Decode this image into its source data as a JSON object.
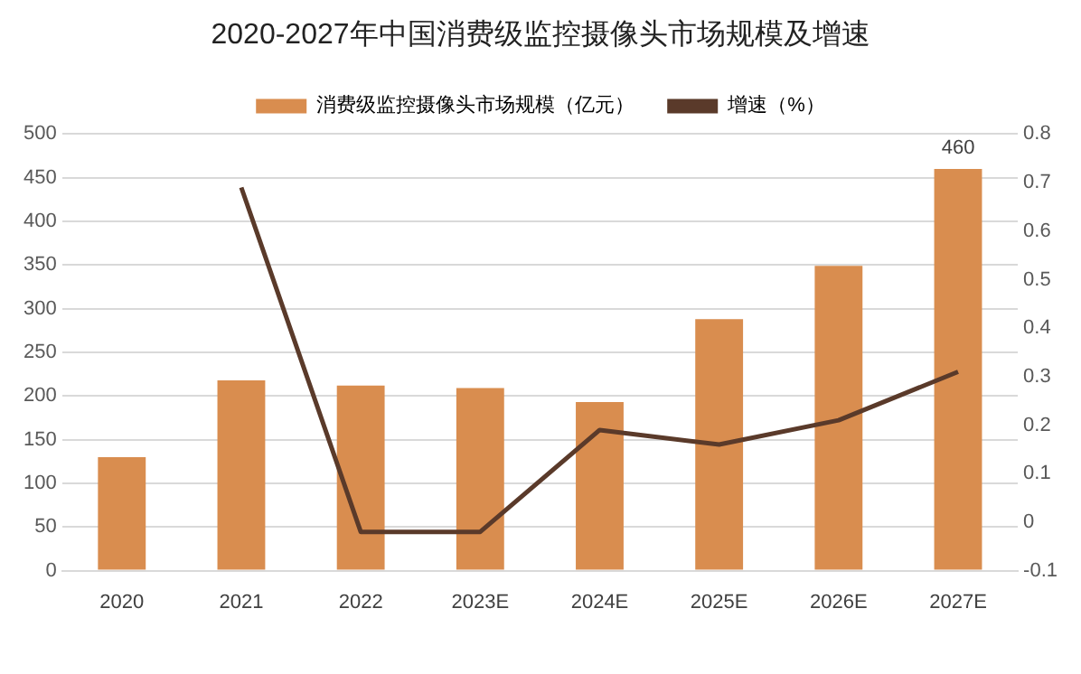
{
  "chart_data": {
    "type": "bar",
    "title": "2020-2027年中国消费级监控摄像头市场规模及增速",
    "categories": [
      "2020",
      "2021",
      "2022",
      "2023E",
      "2024E",
      "2025E",
      "2026E",
      "2027E"
    ],
    "series": [
      {
        "name": "消费级监控摄像头市场规模（亿元）",
        "type": "bar",
        "color": "#d98d4f",
        "values": [
          130,
          218,
          212,
          209,
          193,
          288,
          349,
          460
        ],
        "value_labels": [
          null,
          null,
          null,
          null,
          null,
          null,
          null,
          "460"
        ]
      },
      {
        "name": "增速（%）",
        "type": "line",
        "axis": "y2",
        "color": "#5a3a2a",
        "values": [
          null,
          0.69,
          -0.02,
          -0.02,
          0.19,
          0.16,
          0.21,
          0.31
        ]
      }
    ],
    "ylim": [
      0,
      500
    ],
    "yticks": [
      0,
      50,
      100,
      150,
      200,
      250,
      300,
      350,
      400,
      450,
      500
    ],
    "y2lim": [
      -0.1,
      0.8
    ],
    "y2ticks": [
      -0.1,
      0,
      0.1,
      0.2,
      0.3,
      0.4,
      0.5,
      0.6,
      0.7,
      0.8
    ],
    "grid": "y",
    "legend": "top",
    "marker": "none"
  }
}
